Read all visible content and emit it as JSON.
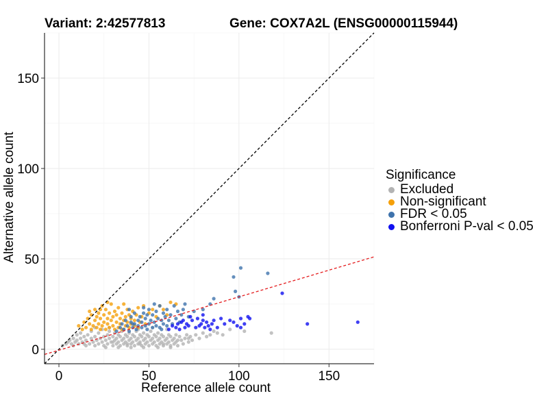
{
  "chart_data": {
    "type": "scatter",
    "title_left": "Variant: 2:42577813",
    "title_right": "Gene: COX7A2L (ENSG00000115944)",
    "xlabel": "Reference allele count",
    "ylabel": "Alternative allele count",
    "xlim": [
      -8,
      175
    ],
    "ylim": [
      -8,
      175
    ],
    "xticks": [
      0,
      50,
      100,
      150
    ],
    "yticks": [
      0,
      50,
      100,
      150
    ],
    "grid": true,
    "reference_lines": [
      {
        "name": "identity line y = x",
        "slope": 1.0,
        "intercept": 0,
        "color": "#000000",
        "style": "dashed"
      },
      {
        "name": "regression line",
        "slope": 0.295,
        "intercept": -0.5,
        "color": "#e41a1c",
        "style": "dashed"
      }
    ],
    "legend": {
      "title": "Significance",
      "position": "right",
      "entries": [
        {
          "label": "Excluded",
          "color": "#b3b3b3"
        },
        {
          "label": "Non-significant",
          "color": "#f5a00a"
        },
        {
          "label": "FDR < 0.05",
          "color": "#3f73ac"
        },
        {
          "label": "Bonferroni P-val < 0.05",
          "color": "#1010f0"
        }
      ]
    },
    "series": [
      {
        "name": "Excluded",
        "color": "#b3b3b3",
        "points": [
          [
            2,
            2
          ],
          [
            4,
            3
          ],
          [
            5,
            4
          ],
          [
            6,
            5
          ],
          [
            7,
            3
          ],
          [
            8,
            6
          ],
          [
            9,
            4
          ],
          [
            10,
            5
          ],
          [
            10,
            8
          ],
          [
            11,
            3
          ],
          [
            12,
            6
          ],
          [
            12,
            9
          ],
          [
            13,
            4
          ],
          [
            14,
            7
          ],
          [
            15,
            2
          ],
          [
            15,
            5
          ],
          [
            16,
            8
          ],
          [
            17,
            3
          ],
          [
            18,
            6
          ],
          [
            18,
            10
          ],
          [
            19,
            4
          ],
          [
            20,
            7
          ],
          [
            20,
            2
          ],
          [
            21,
            5
          ],
          [
            22,
            9
          ],
          [
            22,
            3
          ],
          [
            23,
            6
          ],
          [
            24,
            4
          ],
          [
            24,
            11
          ],
          [
            25,
            7
          ],
          [
            25,
            2
          ],
          [
            26,
            5
          ],
          [
            27,
            8
          ],
          [
            27,
            3
          ],
          [
            28,
            6
          ],
          [
            28,
            10
          ],
          [
            29,
            4
          ],
          [
            30,
            7
          ],
          [
            30,
            2
          ],
          [
            31,
            5
          ],
          [
            31,
            9
          ],
          [
            32,
            3
          ],
          [
            32,
            6
          ],
          [
            33,
            8
          ],
          [
            33,
            4
          ],
          [
            34,
            2
          ],
          [
            34,
            7
          ],
          [
            35,
            5
          ],
          [
            35,
            10
          ],
          [
            36,
            3
          ],
          [
            36,
            6
          ],
          [
            37,
            8
          ],
          [
            37,
            4
          ],
          [
            38,
            2
          ],
          [
            38,
            7
          ],
          [
            39,
            5
          ],
          [
            39,
            9
          ],
          [
            40,
            3
          ],
          [
            40,
            6
          ],
          [
            41,
            8
          ],
          [
            41,
            4
          ],
          [
            42,
            2
          ],
          [
            42,
            7
          ],
          [
            43,
            5
          ],
          [
            43,
            10
          ],
          [
            44,
            3
          ],
          [
            44,
            6
          ],
          [
            45,
            8
          ],
          [
            45,
            4
          ],
          [
            46,
            2
          ],
          [
            46,
            7
          ],
          [
            47,
            5
          ],
          [
            47,
            9
          ],
          [
            48,
            3
          ],
          [
            48,
            6
          ],
          [
            49,
            8
          ],
          [
            49,
            4
          ],
          [
            50,
            2
          ],
          [
            50,
            7
          ],
          [
            51,
            5
          ],
          [
            51,
            10
          ],
          [
            52,
            3
          ],
          [
            52,
            6
          ],
          [
            53,
            8
          ],
          [
            53,
            4
          ],
          [
            54,
            2
          ],
          [
            54,
            7
          ],
          [
            55,
            5
          ],
          [
            55,
            9
          ],
          [
            56,
            3
          ],
          [
            56,
            6
          ],
          [
            57,
            8
          ],
          [
            57,
            4
          ],
          [
            58,
            2
          ],
          [
            58,
            7
          ],
          [
            59,
            5
          ],
          [
            60,
            3
          ],
          [
            60,
            6
          ],
          [
            61,
            8
          ],
          [
            61,
            4
          ],
          [
            62,
            2
          ],
          [
            62,
            7
          ],
          [
            63,
            5
          ],
          [
            64,
            3
          ],
          [
            64,
            6
          ],
          [
            65,
            8
          ],
          [
            65,
            4
          ],
          [
            66,
            2
          ],
          [
            67,
            7
          ],
          [
            68,
            5
          ],
          [
            69,
            3
          ],
          [
            70,
            6
          ],
          [
            71,
            8
          ],
          [
            72,
            4
          ],
          [
            73,
            7
          ],
          [
            74,
            5
          ],
          [
            76,
            8
          ],
          [
            78,
            6
          ],
          [
            80,
            9
          ],
          [
            82,
            7
          ],
          [
            84,
            8
          ],
          [
            86,
            10
          ],
          [
            88,
            9
          ],
          [
            91,
            8
          ],
          [
            95,
            11
          ],
          [
            103,
            10
          ],
          [
            118,
            9
          ],
          [
            20,
            12
          ],
          [
            28,
            12
          ],
          [
            36,
            11
          ],
          [
            44,
            11
          ],
          [
            52,
            12
          ],
          [
            60,
            11
          ],
          [
            8,
            2
          ],
          [
            14,
            3
          ],
          [
            26,
            1
          ],
          [
            33,
            1
          ],
          [
            40,
            1
          ],
          [
            47,
            1
          ],
          [
            55,
            1
          ],
          [
            62,
            1
          ],
          [
            30,
            4
          ],
          [
            38,
            3
          ],
          [
            45,
            3
          ],
          [
            58,
            3
          ],
          [
            66,
            5
          ],
          [
            72,
            6
          ]
        ]
      },
      {
        "name": "Non-significant",
        "color": "#f5a00a",
        "points": [
          [
            11,
            13
          ],
          [
            13,
            11
          ],
          [
            14,
            15
          ],
          [
            15,
            12
          ],
          [
            16,
            17
          ],
          [
            17,
            14
          ],
          [
            18,
            11
          ],
          [
            18,
            19
          ],
          [
            19,
            13
          ],
          [
            20,
            16
          ],
          [
            20,
            22
          ],
          [
            21,
            12
          ],
          [
            21,
            18
          ],
          [
            22,
            14
          ],
          [
            22,
            20
          ],
          [
            23,
            11
          ],
          [
            23,
            17
          ],
          [
            24,
            13
          ],
          [
            24,
            24
          ],
          [
            25,
            15
          ],
          [
            25,
            19
          ],
          [
            26,
            11
          ],
          [
            26,
            22
          ],
          [
            27,
            14
          ],
          [
            27,
            17
          ],
          [
            28,
            12
          ],
          [
            28,
            20
          ],
          [
            29,
            16
          ],
          [
            29,
            25
          ],
          [
            30,
            13
          ],
          [
            30,
            18
          ],
          [
            31,
            11
          ],
          [
            31,
            21
          ],
          [
            32,
            15
          ],
          [
            32,
            19
          ],
          [
            33,
            12
          ],
          [
            33,
            23
          ],
          [
            34,
            14
          ],
          [
            34,
            17
          ],
          [
            35,
            11
          ],
          [
            35,
            20
          ],
          [
            36,
            16
          ],
          [
            36,
            25
          ],
          [
            37,
            13
          ],
          [
            37,
            18
          ],
          [
            38,
            15
          ],
          [
            38,
            22
          ],
          [
            39,
            12
          ],
          [
            39,
            19
          ],
          [
            40,
            14
          ],
          [
            40,
            17
          ],
          [
            41,
            21
          ],
          [
            42,
            13
          ],
          [
            42,
            16
          ],
          [
            43,
            19
          ],
          [
            44,
            12
          ],
          [
            45,
            15
          ],
          [
            46,
            18
          ],
          [
            47,
            24
          ],
          [
            48,
            14
          ],
          [
            50,
            20
          ],
          [
            52,
            22
          ],
          [
            54,
            18
          ],
          [
            58,
            22
          ],
          [
            62,
            26
          ],
          [
            65,
            25
          ],
          [
            60,
            19
          ],
          [
            56,
            24
          ],
          [
            44,
            23
          ],
          [
            27,
            26
          ],
          [
            23,
            22
          ],
          [
            17,
            21
          ]
        ]
      },
      {
        "name": "FDR < 0.05",
        "color": "#3f73ac",
        "points": [
          [
            32,
            10
          ],
          [
            34,
            12
          ],
          [
            35,
            14
          ],
          [
            36,
            11
          ],
          [
            37,
            16
          ],
          [
            38,
            13
          ],
          [
            39,
            10
          ],
          [
            40,
            15
          ],
          [
            40,
            18
          ],
          [
            41,
            12
          ],
          [
            42,
            14
          ],
          [
            42,
            20
          ],
          [
            43,
            11
          ],
          [
            44,
            16
          ],
          [
            44,
            13
          ],
          [
            45,
            18
          ],
          [
            46,
            12
          ],
          [
            46,
            15
          ],
          [
            47,
            20
          ],
          [
            48,
            13
          ],
          [
            48,
            17
          ],
          [
            49,
            11
          ],
          [
            50,
            14
          ],
          [
            50,
            22
          ],
          [
            51,
            16
          ],
          [
            52,
            12
          ],
          [
            52,
            19
          ],
          [
            53,
            15
          ],
          [
            54,
            13
          ],
          [
            54,
            21
          ],
          [
            55,
            17
          ],
          [
            56,
            12
          ],
          [
            56,
            24
          ],
          [
            57,
            16
          ],
          [
            58,
            14
          ],
          [
            58,
            20
          ],
          [
            59,
            18
          ],
          [
            60,
            13
          ],
          [
            60,
            22
          ],
          [
            61,
            16
          ],
          [
            62,
            19
          ],
          [
            63,
            14
          ],
          [
            64,
            24
          ],
          [
            65,
            17
          ],
          [
            66,
            21
          ],
          [
            68,
            19
          ],
          [
            70,
            25
          ],
          [
            72,
            18
          ],
          [
            75,
            21
          ],
          [
            80,
            22
          ],
          [
            84,
            25
          ],
          [
            86,
            28
          ],
          [
            98,
            32
          ],
          [
            100,
            29
          ],
          [
            101,
            45
          ],
          [
            97,
            40
          ],
          [
            116,
            42
          ],
          [
            67,
            15
          ],
          [
            69,
            22
          ],
          [
            53,
            25
          ],
          [
            47,
            23
          ],
          [
            39,
            22
          ],
          [
            41,
            14
          ],
          [
            57,
            11
          ],
          [
            49,
            19
          ]
        ]
      },
      {
        "name": "Bonferroni P-val < 0.05",
        "color": "#1010f0",
        "points": [
          [
            61,
            11
          ],
          [
            63,
            13
          ],
          [
            65,
            12
          ],
          [
            66,
            14
          ],
          [
            67,
            11
          ],
          [
            68,
            15
          ],
          [
            70,
            12
          ],
          [
            71,
            14
          ],
          [
            72,
            13
          ],
          [
            74,
            16
          ],
          [
            76,
            12
          ],
          [
            77,
            17
          ],
          [
            79,
            14
          ],
          [
            80,
            16
          ],
          [
            82,
            15
          ],
          [
            83,
            13
          ],
          [
            85,
            14
          ],
          [
            86,
            16
          ],
          [
            80,
            19
          ],
          [
            78,
            13
          ],
          [
            81,
            12
          ],
          [
            92,
            14
          ],
          [
            95,
            16
          ],
          [
            97,
            15
          ],
          [
            99,
            13
          ],
          [
            101,
            17
          ],
          [
            103,
            14
          ],
          [
            105,
            18
          ],
          [
            106,
            17
          ],
          [
            101,
            12
          ],
          [
            124,
            31
          ],
          [
            138,
            14
          ],
          [
            166,
            15
          ],
          [
            88,
            12
          ],
          [
            90,
            17
          ],
          [
            73,
            18
          ],
          [
            69,
            16
          ],
          [
            84,
            11
          ]
        ]
      }
    ]
  }
}
